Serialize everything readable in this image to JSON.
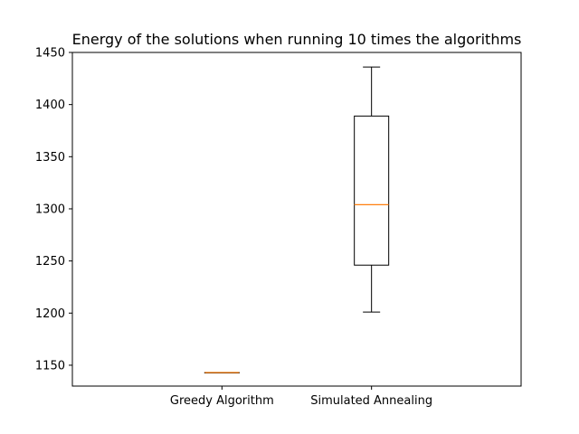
{
  "chart_data": {
    "type": "box",
    "title": "Energy of the solutions when running 10 times the algorithms",
    "xlabel": "",
    "ylabel": "",
    "categories": [
      "Greedy Algorithm",
      "Simulated Annealing"
    ],
    "boxes": [
      {
        "category": "Greedy Algorithm",
        "whisker_low": 1143,
        "q1": 1143,
        "median": 1143,
        "q3": 1143,
        "whisker_high": 1143
      },
      {
        "category": "Simulated Annealing",
        "whisker_low": 1201,
        "q1": 1246,
        "median": 1304,
        "q3": 1389,
        "whisker_high": 1436
      }
    ],
    "ylim": [
      1130,
      1450
    ],
    "yticks": [
      1150,
      1200,
      1250,
      1300,
      1350,
      1400,
      1450
    ],
    "grid": false,
    "legend": "none",
    "colors": {
      "box": "#000000",
      "median": "#ff7f0e",
      "axes": "#000000"
    }
  }
}
